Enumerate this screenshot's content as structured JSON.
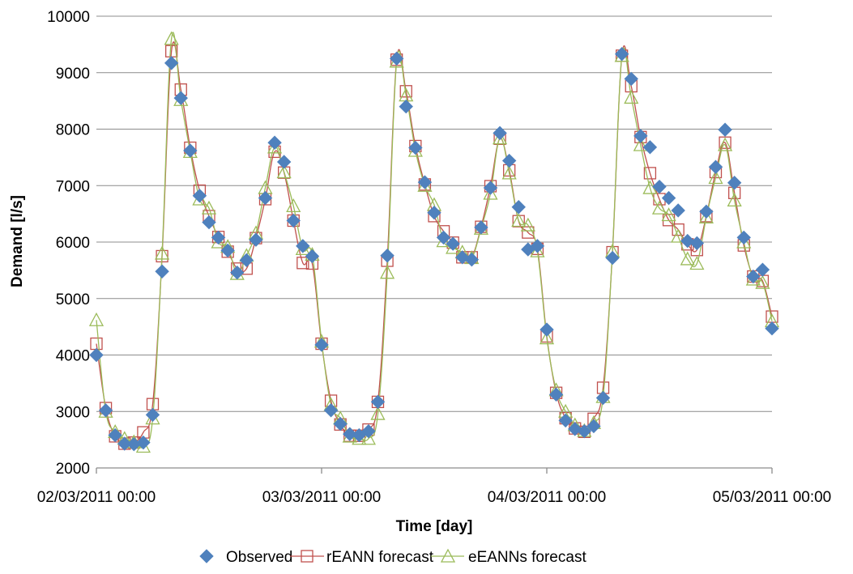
{
  "chart_data": {
    "type": "line",
    "title": "",
    "xlabel": "Time [day]",
    "ylabel": "Demand [l/s]",
    "ylim": [
      2000,
      10000
    ],
    "yticks": [
      2000,
      3000,
      4000,
      5000,
      6000,
      7000,
      8000,
      9000,
      10000
    ],
    "ytick_labels": [
      "2000",
      "3000",
      "4000",
      "5000",
      "6000",
      "7000",
      "8000",
      "9000",
      "10000"
    ],
    "xlim": [
      0,
      72
    ],
    "x_unit": "hours from 02/03/2011 00:00",
    "xticks": [
      0,
      24,
      48,
      72
    ],
    "xtick_labels": [
      "02/03/2011 00:00",
      "03/03/2011 00:00",
      "04/03/2011 00:00",
      "05/03/2011 00:00"
    ],
    "grid": "horizontal",
    "legend_position": "bottom",
    "series": [
      {
        "name": "Observed",
        "color": "#4f81bd",
        "marker": "diamond",
        "line": false,
        "x": [
          0,
          1,
          2,
          3,
          4,
          5,
          6,
          7,
          8,
          9,
          10,
          11,
          12,
          13,
          14,
          15,
          16,
          17,
          18,
          19,
          20,
          21,
          22,
          23,
          24,
          25,
          26,
          27,
          28,
          29,
          30,
          31,
          32,
          33,
          34,
          35,
          36,
          37,
          38,
          39,
          40,
          41,
          42,
          43,
          44,
          45,
          46,
          47,
          48,
          49,
          50,
          51,
          52,
          53,
          54,
          55,
          56,
          57,
          58,
          59,
          60,
          61,
          62,
          63,
          64,
          65,
          66,
          67,
          68,
          69,
          70,
          71,
          72
        ],
        "values": [
          4000,
          3020,
          2580,
          2430,
          2420,
          2450,
          2940,
          5480,
          9170,
          8550,
          7620,
          6820,
          6350,
          6080,
          5850,
          5460,
          5680,
          6040,
          6780,
          7760,
          7420,
          6380,
          5930,
          5750,
          4180,
          3020,
          2780,
          2600,
          2580,
          2650,
          3170,
          5760,
          9250,
          8400,
          7670,
          7060,
          6520,
          6080,
          5970,
          5730,
          5690,
          6260,
          6960,
          7930,
          7440,
          6620,
          5870,
          5930,
          4450,
          3300,
          2840,
          2690,
          2650,
          2740,
          3240,
          5720,
          9330,
          8890,
          7880,
          7680,
          6980,
          6780,
          6560,
          6020,
          5980,
          6540,
          7330,
          7990,
          7050,
          6080,
          5390,
          5510,
          4470
        ]
      },
      {
        "name": "rEANN forecast",
        "color": "#c0504d",
        "marker": "square",
        "line": true,
        "x": [
          0,
          1,
          2,
          3,
          4,
          5,
          6,
          7,
          8,
          9,
          10,
          11,
          12,
          13,
          14,
          15,
          16,
          17,
          18,
          19,
          20,
          21,
          22,
          23,
          24,
          25,
          26,
          27,
          28,
          29,
          30,
          31,
          32,
          33,
          34,
          35,
          36,
          37,
          38,
          39,
          40,
          41,
          42,
          43,
          44,
          45,
          46,
          47,
          48,
          49,
          50,
          51,
          52,
          53,
          54,
          55,
          56,
          57,
          58,
          59,
          60,
          61,
          62,
          63,
          64,
          65,
          66,
          67,
          68,
          69,
          70,
          71,
          72
        ],
        "values": [
          4200,
          3060,
          2560,
          2430,
          2450,
          2630,
          3130,
          5750,
          9380,
          8700,
          7670,
          6910,
          6460,
          6090,
          5830,
          5530,
          5530,
          6070,
          6760,
          7600,
          7230,
          6380,
          5630,
          5620,
          4200,
          3190,
          2770,
          2570,
          2570,
          2680,
          3170,
          5670,
          9230,
          8670,
          7700,
          7020,
          6460,
          6190,
          5990,
          5730,
          5730,
          6270,
          6990,
          7830,
          7270,
          6370,
          6170,
          5880,
          4330,
          3330,
          2880,
          2700,
          2640,
          2870,
          3420,
          5820,
          9300,
          8760,
          7860,
          7220,
          6760,
          6390,
          6220,
          5960,
          5860,
          6460,
          7240,
          7760,
          6870,
          5940,
          5390,
          5310,
          4680
        ]
      },
      {
        "name": "eEANNs forecast",
        "color": "#9bbb59",
        "marker": "triangle",
        "line": true,
        "x": [
          0,
          1,
          2,
          3,
          4,
          5,
          6,
          7,
          8,
          9,
          10,
          11,
          12,
          13,
          14,
          15,
          16,
          17,
          18,
          19,
          20,
          21,
          22,
          23,
          24,
          25,
          26,
          27,
          28,
          29,
          30,
          31,
          32,
          33,
          34,
          35,
          36,
          37,
          38,
          39,
          40,
          41,
          42,
          43,
          44,
          45,
          46,
          47,
          48,
          49,
          50,
          51,
          52,
          53,
          54,
          55,
          56,
          57,
          58,
          59,
          60,
          61,
          62,
          63,
          64,
          65,
          66,
          67,
          68,
          69,
          70,
          71,
          72
        ],
        "values": [
          4620,
          3000,
          2640,
          2520,
          2460,
          2380,
          2880,
          5800,
          9600,
          8520,
          7600,
          6760,
          6600,
          6000,
          5920,
          5440,
          5760,
          6160,
          6960,
          7680,
          7240,
          6640,
          5880,
          5780,
          4240,
          3120,
          2880,
          2560,
          2520,
          2520,
          2960,
          5460,
          9200,
          8600,
          7620,
          7000,
          6660,
          6020,
          5900,
          5820,
          5720,
          6240,
          6860,
          7840,
          7220,
          6380,
          6300,
          5840,
          4300,
          3380,
          3000,
          2760,
          2660,
          2800,
          3260,
          5840,
          9300,
          8560,
          7720,
          6960,
          6600,
          6480,
          6100,
          5700,
          5620,
          6440,
          7140,
          7720,
          6740,
          6000,
          5340,
          5280,
          4600
        ]
      }
    ]
  }
}
